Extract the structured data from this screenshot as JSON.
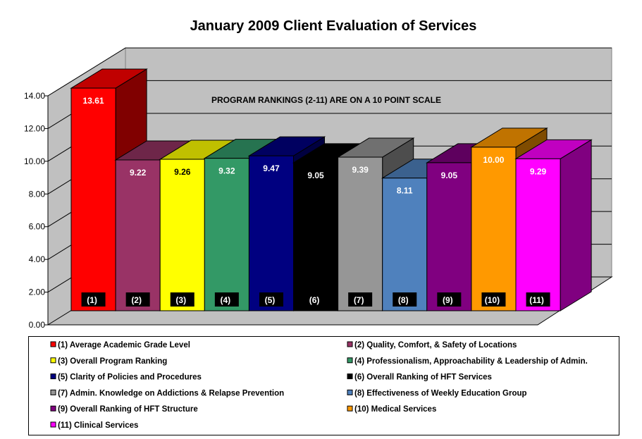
{
  "chart_data": {
    "type": "bar",
    "title": "January 2009 Client Evaluation of Services",
    "annotation": "PROGRAM RANKINGS (2-11) ARE ON A 10 POINT SCALE",
    "xlabel": "",
    "ylabel": "",
    "ylim": [
      0,
      14
    ],
    "yticks": [
      0,
      2,
      4,
      6,
      8,
      10,
      12,
      14
    ],
    "ytick_labels": [
      "0.00",
      "2.00",
      "4.00",
      "6.00",
      "8.00",
      "10.00",
      "12.00",
      "14.00"
    ],
    "grid": true,
    "legend_position": "bottom",
    "categories": [
      "(1)",
      "(2)",
      "(3)",
      "(4)",
      "(5)",
      "(6)",
      "(7)",
      "(8)",
      "(9)",
      "(10)",
      "(11)"
    ],
    "values": [
      13.61,
      9.22,
      9.26,
      9.32,
      9.47,
      9.05,
      9.39,
      8.11,
      9.05,
      10.0,
      9.29
    ],
    "value_labels": [
      "13.61",
      "9.22",
      "9.26",
      "9.32",
      "9.47",
      "9.05",
      "9.39",
      "8.11",
      "9.05",
      "10.00",
      "9.29"
    ],
    "legend": [
      "(1) Average Academic Grade Level",
      "(2) Quality, Comfort, & Safety of Locations",
      "(3) Overall Program Ranking",
      "(4) Professionalism, Approachability  & Leadership of Admin.",
      "(5) Clarity of Policies and Procedures",
      "(6) Overall Ranking of HFT Services",
      "(7) Admin. Knowledge on Addictions & Relapse Prevention",
      "(8) Effectiveness of Weekly Education Group",
      "(9) Overall Ranking of HFT Structure",
      "(10) Medical Services",
      "(11) Clinical Services"
    ],
    "colors": [
      "#ff0000",
      "#993366",
      "#ffff00",
      "#339966",
      "#000080",
      "#000000",
      "#969696",
      "#4f81bd",
      "#800080",
      "#ff9900",
      "#ff00ff"
    ],
    "top_colors": [
      "#c00000",
      "#6e2649",
      "#c0c000",
      "#267350",
      "#000060",
      "#000000",
      "#707070",
      "#3b618e",
      "#5e005e",
      "#c07300",
      "#c000c0"
    ],
    "side_colors": [
      "#800000",
      "#6e2649",
      "#808000",
      "#1d5a3c",
      "#000040",
      "#000000",
      "#4d4d4d",
      "#2f4f75",
      "#400040",
      "#7f4c00",
      "#800080"
    ]
  }
}
